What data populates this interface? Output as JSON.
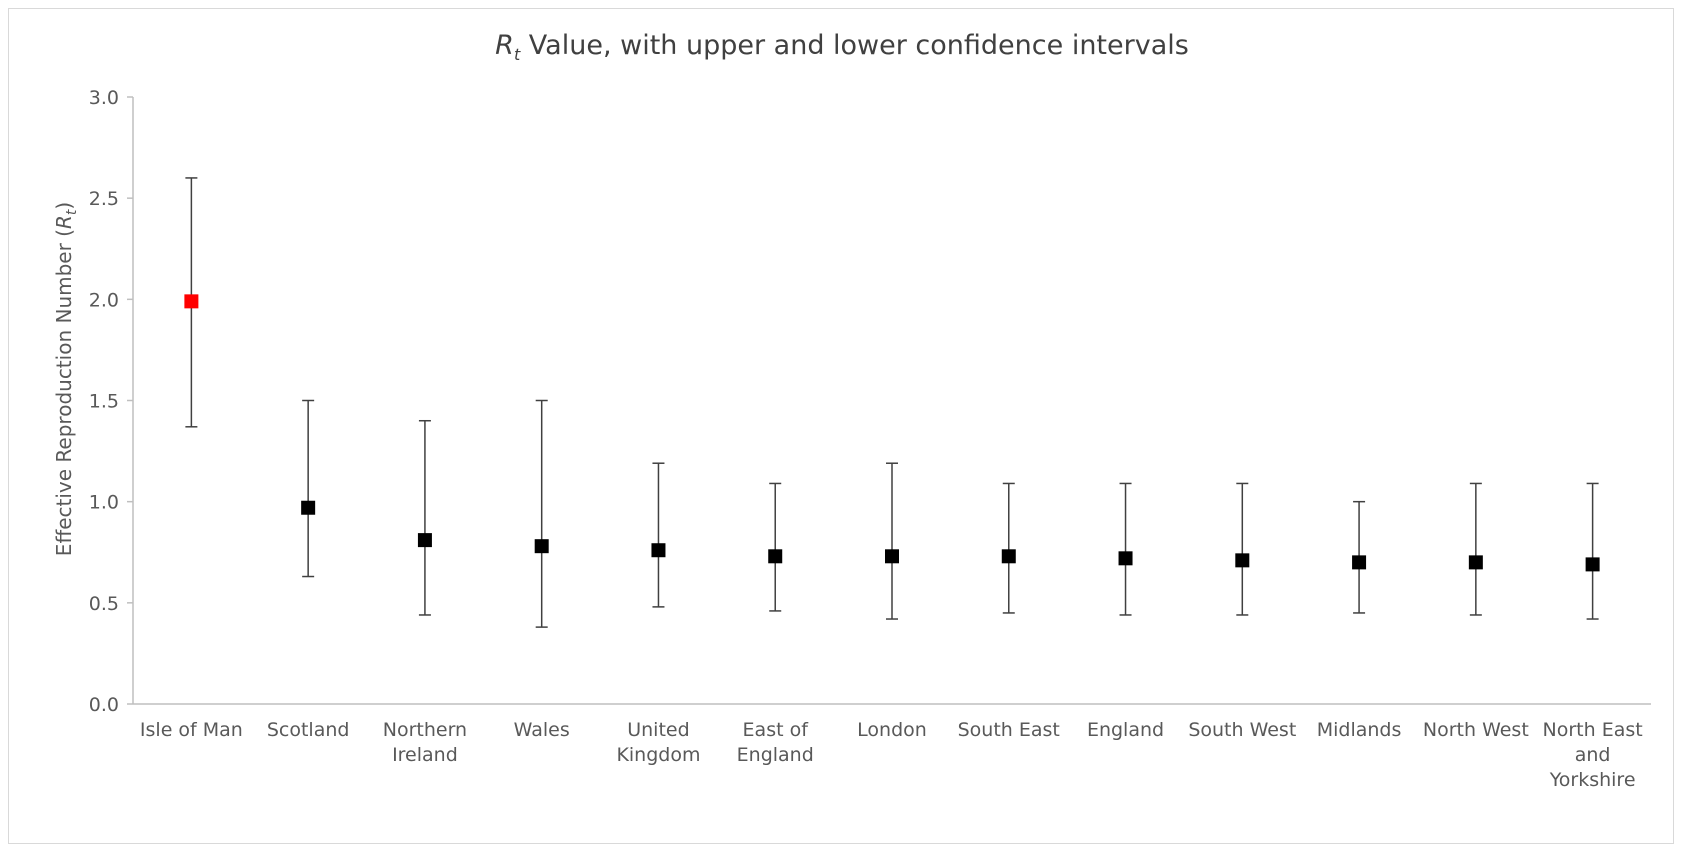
{
  "chart_data": {
    "type": "scatter",
    "title_symbol": "R",
    "title_subscript": "t",
    "title_rest": " Value, with upper and lower confidence intervals",
    "ylabel_prefix": "Effective Reproduction Number (",
    "ylabel_symbol": "R",
    "ylabel_subscript": "t",
    "ylabel_suffix": ")",
    "ylim": [
      0,
      3
    ],
    "yticks": [
      "0.0",
      "0.5",
      "1.0",
      "1.5",
      "2.0",
      "2.5",
      "3.0"
    ],
    "grid": false,
    "legend": "none",
    "categories": [
      [
        "Isle of Man"
      ],
      [
        "Scotland"
      ],
      [
        "Northern",
        "Ireland"
      ],
      [
        "Wales"
      ],
      [
        "United",
        "Kingdom"
      ],
      [
        "East of",
        "England"
      ],
      [
        "London"
      ],
      [
        "South East"
      ],
      [
        "England"
      ],
      [
        "South West"
      ],
      [
        "Midlands"
      ],
      [
        "North West"
      ],
      [
        "North East",
        "and",
        "Yorkshire"
      ]
    ],
    "values": [
      1.99,
      0.97,
      0.81,
      0.78,
      0.76,
      0.73,
      0.73,
      0.73,
      0.72,
      0.71,
      0.7,
      0.7,
      0.69
    ],
    "lower": [
      1.37,
      0.63,
      0.44,
      0.38,
      0.48,
      0.46,
      0.42,
      0.45,
      0.44,
      0.44,
      0.45,
      0.44,
      0.42
    ],
    "upper": [
      2.6,
      1.5,
      1.4,
      1.5,
      1.19,
      1.09,
      1.19,
      1.09,
      1.09,
      1.09,
      1.0,
      1.09,
      1.09
    ],
    "colors": {
      "highlight": "#ff0000",
      "marker": "#000000",
      "axis": "#bfbfbf",
      "errorbar": "#404040"
    }
  }
}
